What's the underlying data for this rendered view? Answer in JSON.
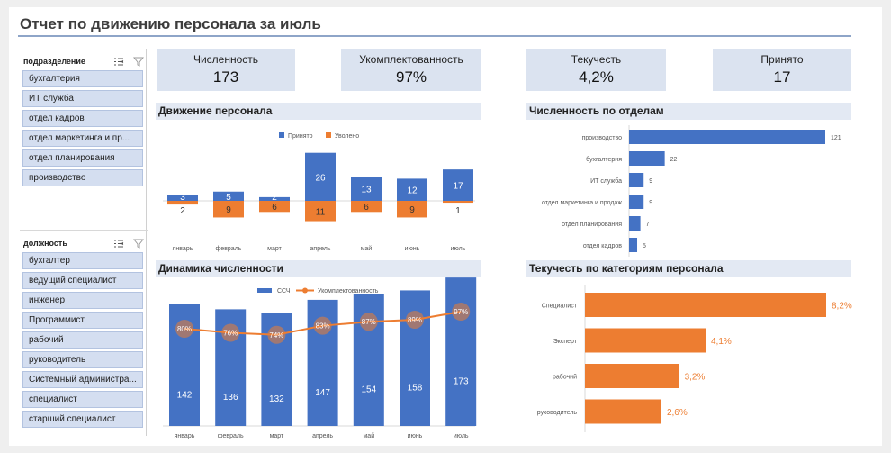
{
  "title": "Отчет по движению персонала за июль",
  "slicers": [
    {
      "title": "подразделение",
      "items": [
        "бухгалтерия",
        "ИТ служба",
        "отдел кадров",
        "отдел маркетинга и пр...",
        "отдел планирования",
        "производство"
      ]
    },
    {
      "title": "должность",
      "items": [
        "бухгалтер",
        "ведущий специалист",
        "инженер",
        "Программист",
        "рабочий",
        "руководитель",
        "Системный администра...",
        "специалист",
        "старший специалист"
      ]
    }
  ],
  "kpis": [
    {
      "label": "Численность",
      "value": "173"
    },
    {
      "label": "Укомплектованность",
      "value": "97%"
    },
    {
      "label": "Текучесть",
      "value": "4,2%"
    },
    {
      "label": "Принято",
      "value": "17"
    }
  ],
  "panels": {
    "movement": "Движение персонала",
    "by_dept": "Численность по отделам",
    "dynamics": "Динамика численности",
    "turnover": "Текучесть по категориям персонала"
  },
  "colors": {
    "blue": "#4472c4",
    "orange": "#ed7d31",
    "slicer_fill": "#d4def0",
    "kpi_fill": "#dbe3f0"
  },
  "chart_data": [
    {
      "type": "bar",
      "title": "Движение персонала",
      "categories": [
        "январь",
        "февраль",
        "март",
        "апрель",
        "май",
        "июнь",
        "июль"
      ],
      "series": [
        {
          "name": "Принято",
          "values": [
            3,
            5,
            2,
            26,
            13,
            12,
            17
          ]
        },
        {
          "name": "Уволено",
          "values": [
            2,
            9,
            6,
            11,
            6,
            9,
            1
          ]
        }
      ],
      "legend": "top"
    },
    {
      "type": "bar",
      "title": "Численность по отделам",
      "orientation": "horizontal",
      "categories": [
        "производство",
        "бухгалтерия",
        "ИТ служба",
        "отдел маркетинга и продаж",
        "отдел планирования",
        "отдел кадров"
      ],
      "values": [
        121,
        22,
        9,
        9,
        7,
        5
      ]
    },
    {
      "type": "bar",
      "title": "Динамика численности",
      "categories": [
        "январь",
        "февраль",
        "март",
        "апрель",
        "май",
        "июнь",
        "июль"
      ],
      "series": [
        {
          "name": "ССЧ",
          "values": [
            142,
            136,
            132,
            147,
            154,
            158,
            173
          ]
        },
        {
          "name": "Укомплектованность",
          "type": "line",
          "values": [
            80,
            76,
            74,
            83,
            87,
            89,
            97
          ],
          "labels": [
            "80%",
            "76%",
            "74%",
            "83%",
            "87%",
            "89%",
            "97%"
          ]
        }
      ],
      "legend": "top"
    },
    {
      "type": "bar",
      "title": "Текучесть по категориям персонала",
      "orientation": "horizontal",
      "categories": [
        "Специалист",
        "Эксперт",
        "рабочий",
        "руководитель"
      ],
      "values": [
        8.2,
        4.1,
        3.2,
        2.6
      ],
      "labels": [
        "8,2%",
        "4,1%",
        "3,2%",
        "2,6%"
      ]
    }
  ]
}
